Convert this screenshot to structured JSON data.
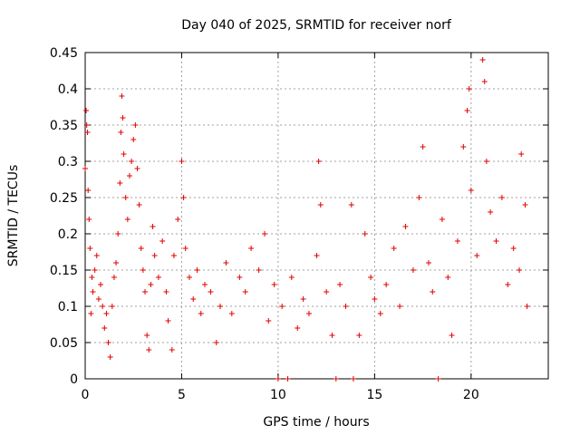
{
  "chart_data": {
    "type": "scatter",
    "title": "Day 040 of 2025, SRMTID for receiver norf",
    "xlabel": "GPS time / hours",
    "ylabel": "SRMTID / TECUs",
    "xlim": [
      0,
      24
    ],
    "ylim": [
      0,
      0.45
    ],
    "xticks": [
      0,
      5,
      10,
      15,
      20
    ],
    "xtick_labels": [
      "0",
      "5",
      "10",
      "15",
      "20"
    ],
    "yticks": [
      0,
      0.05,
      0.1,
      0.15,
      0.2,
      0.25,
      0.3,
      0.35,
      0.4,
      0.45
    ],
    "ytick_labels": [
      "0",
      "0.05",
      "0.1",
      "0.15",
      "0.2",
      "0.25",
      "0.3",
      "0.35",
      "0.4",
      "0.45"
    ],
    "grid": true,
    "marker": "plus",
    "series": [
      {
        "name": "SRMTID",
        "color": "#e00000",
        "points": [
          [
            0.0,
            0.29
          ],
          [
            0.05,
            0.37
          ],
          [
            0.08,
            0.35
          ],
          [
            0.12,
            0.34
          ],
          [
            0.15,
            0.26
          ],
          [
            0.2,
            0.22
          ],
          [
            0.25,
            0.18
          ],
          [
            0.3,
            0.09
          ],
          [
            0.35,
            0.14
          ],
          [
            0.4,
            0.12
          ],
          [
            0.5,
            0.15
          ],
          [
            0.6,
            0.17
          ],
          [
            0.7,
            0.11
          ],
          [
            0.8,
            0.13
          ],
          [
            0.9,
            0.1
          ],
          [
            1.0,
            0.07
          ],
          [
            1.1,
            0.09
          ],
          [
            1.2,
            0.05
          ],
          [
            1.3,
            0.03
          ],
          [
            1.4,
            0.1
          ],
          [
            1.5,
            0.14
          ],
          [
            1.6,
            0.16
          ],
          [
            1.7,
            0.2
          ],
          [
            1.8,
            0.27
          ],
          [
            1.85,
            0.34
          ],
          [
            1.9,
            0.39
          ],
          [
            1.95,
            0.36
          ],
          [
            2.0,
            0.31
          ],
          [
            2.1,
            0.25
          ],
          [
            2.2,
            0.22
          ],
          [
            2.3,
            0.28
          ],
          [
            2.4,
            0.3
          ],
          [
            2.5,
            0.33
          ],
          [
            2.6,
            0.35
          ],
          [
            2.7,
            0.29
          ],
          [
            2.8,
            0.24
          ],
          [
            2.9,
            0.18
          ],
          [
            3.0,
            0.15
          ],
          [
            3.1,
            0.12
          ],
          [
            3.2,
            0.06
          ],
          [
            3.3,
            0.04
          ],
          [
            3.4,
            0.13
          ],
          [
            3.5,
            0.21
          ],
          [
            3.6,
            0.17
          ],
          [
            3.8,
            0.14
          ],
          [
            4.0,
            0.19
          ],
          [
            4.2,
            0.12
          ],
          [
            4.3,
            0.08
          ],
          [
            4.5,
            0.04
          ],
          [
            4.6,
            0.17
          ],
          [
            4.8,
            0.22
          ],
          [
            5.0,
            0.3
          ],
          [
            5.1,
            0.25
          ],
          [
            5.2,
            0.18
          ],
          [
            5.4,
            0.14
          ],
          [
            5.6,
            0.11
          ],
          [
            5.8,
            0.15
          ],
          [
            6.0,
            0.09
          ],
          [
            6.2,
            0.13
          ],
          [
            6.5,
            0.12
          ],
          [
            6.8,
            0.05
          ],
          [
            7.0,
            0.1
          ],
          [
            7.3,
            0.16
          ],
          [
            7.6,
            0.09
          ],
          [
            8.0,
            0.14
          ],
          [
            8.3,
            0.12
          ],
          [
            8.6,
            0.18
          ],
          [
            9.0,
            0.15
          ],
          [
            9.3,
            0.2
          ],
          [
            9.5,
            0.08
          ],
          [
            9.8,
            0.13
          ],
          [
            10.0,
            0.0
          ],
          [
            10.2,
            0.1
          ],
          [
            10.5,
            0.0
          ],
          [
            10.7,
            0.14
          ],
          [
            11.0,
            0.07
          ],
          [
            11.3,
            0.11
          ],
          [
            11.6,
            0.09
          ],
          [
            12.0,
            0.17
          ],
          [
            12.1,
            0.3
          ],
          [
            12.2,
            0.24
          ],
          [
            12.5,
            0.12
          ],
          [
            12.8,
            0.06
          ],
          [
            13.0,
            0.0
          ],
          [
            13.2,
            0.13
          ],
          [
            13.5,
            0.1
          ],
          [
            13.8,
            0.24
          ],
          [
            13.9,
            0.0
          ],
          [
            14.2,
            0.06
          ],
          [
            14.5,
            0.2
          ],
          [
            14.8,
            0.14
          ],
          [
            15.0,
            0.11
          ],
          [
            15.3,
            0.09
          ],
          [
            15.6,
            0.13
          ],
          [
            16.0,
            0.18
          ],
          [
            16.3,
            0.1
          ],
          [
            16.6,
            0.21
          ],
          [
            17.0,
            0.15
          ],
          [
            17.3,
            0.25
          ],
          [
            17.5,
            0.32
          ],
          [
            17.8,
            0.16
          ],
          [
            18.0,
            0.12
          ],
          [
            18.3,
            0.0
          ],
          [
            18.5,
            0.22
          ],
          [
            18.8,
            0.14
          ],
          [
            19.0,
            0.06
          ],
          [
            19.3,
            0.19
          ],
          [
            19.6,
            0.32
          ],
          [
            19.8,
            0.37
          ],
          [
            19.9,
            0.4
          ],
          [
            20.0,
            0.26
          ],
          [
            20.3,
            0.17
          ],
          [
            20.6,
            0.44
          ],
          [
            20.7,
            0.41
          ],
          [
            20.8,
            0.3
          ],
          [
            21.0,
            0.23
          ],
          [
            21.3,
            0.19
          ],
          [
            21.6,
            0.25
          ],
          [
            21.9,
            0.13
          ],
          [
            22.2,
            0.18
          ],
          [
            22.5,
            0.15
          ],
          [
            22.6,
            0.31
          ],
          [
            22.8,
            0.24
          ],
          [
            22.9,
            0.1
          ]
        ]
      }
    ]
  }
}
